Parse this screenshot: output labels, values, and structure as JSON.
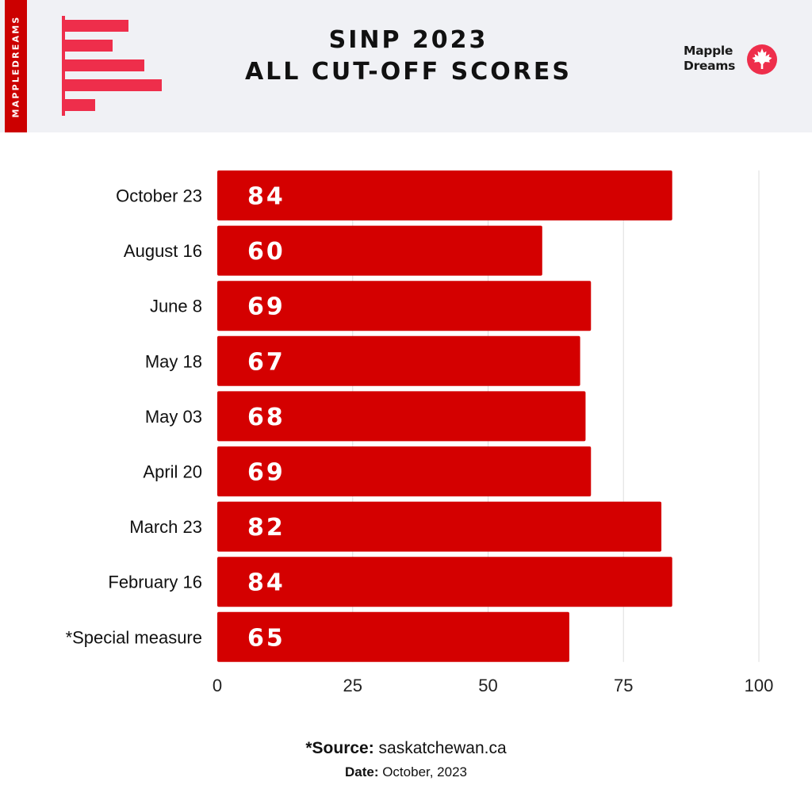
{
  "brand": {
    "side_text": "MAPPLEDREAMS",
    "name_line1": "Mapple",
    "name_line2": "Dreams",
    "logo_icon": "maple-leaf-icon"
  },
  "header": {
    "title_line1": "SINP 2023",
    "title_line2": "ALL CUT-OFF SCORES"
  },
  "colors": {
    "bar": "#d40000",
    "accent": "#ee2e4b",
    "header_bg": "#f0f1f5",
    "grid": "#dddddd"
  },
  "chart_data": {
    "type": "bar",
    "orientation": "horizontal",
    "categories": [
      "October 23",
      "August 16",
      "June 8",
      "May 18",
      "May 03",
      "April 20",
      "March 23",
      "February 16",
      "*Special measure"
    ],
    "values": [
      84,
      60,
      69,
      67,
      68,
      69,
      82,
      84,
      65
    ],
    "xlim": [
      0,
      100
    ],
    "x_ticks": [
      "0",
      "25",
      "50",
      "75",
      "100"
    ],
    "grid": true,
    "data_labels": true
  },
  "footer": {
    "source_prefix": "*",
    "source_label": "Source:",
    "source_value": " saskatchewan.ca",
    "date_label": "Date:",
    "date_value": " October, 2023"
  }
}
